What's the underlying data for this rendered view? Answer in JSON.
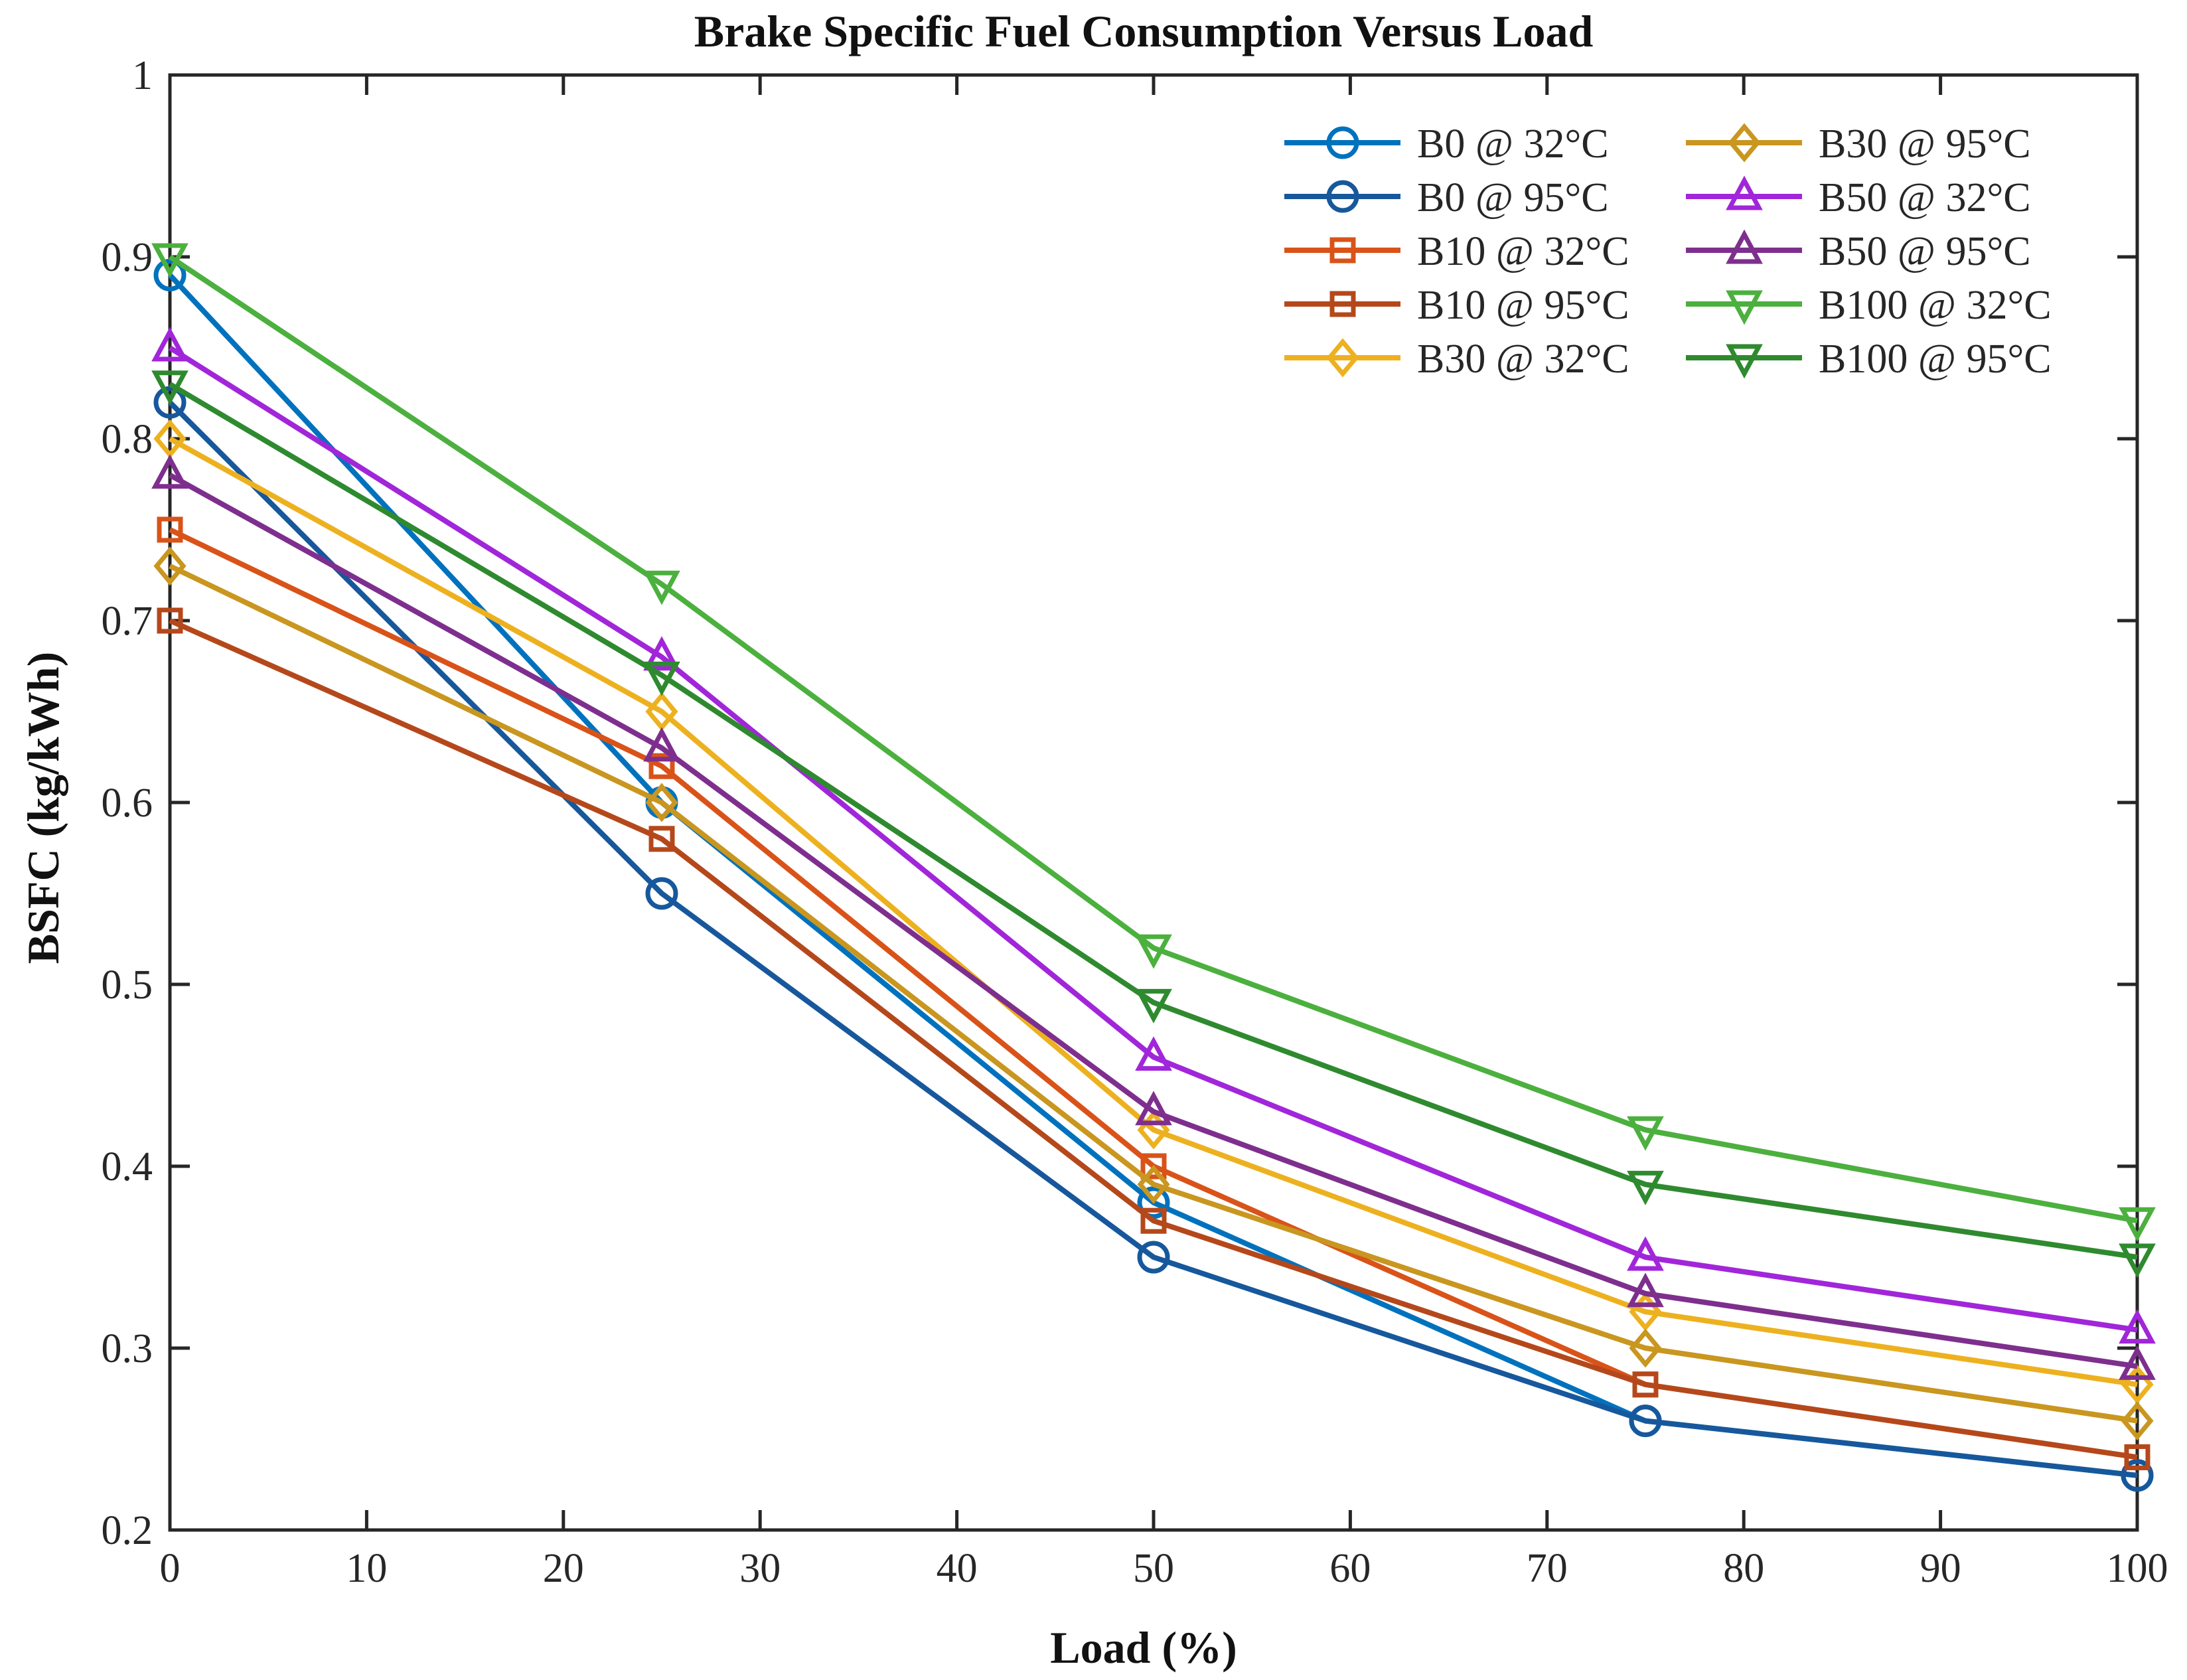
{
  "chart_data": {
    "type": "line",
    "title": "Brake Specific Fuel Consumption Versus Load",
    "xlabel": "Load (%)",
    "ylabel": "BSFC (kg/kWh)",
    "xlim": [
      0,
      100
    ],
    "ylim": [
      0.2,
      1.0
    ],
    "xticks": [
      0,
      10,
      20,
      30,
      40,
      50,
      60,
      70,
      80,
      90,
      100
    ],
    "yticks": [
      0.2,
      0.3,
      0.4,
      0.5,
      0.6,
      0.7,
      0.8,
      0.9,
      1
    ],
    "ytick_labels": [
      "0.2",
      "0.3",
      "0.4",
      "0.5",
      "0.6",
      "0.7",
      "0.8",
      "0.9",
      "1"
    ],
    "grid": false,
    "legend_position": "top-right",
    "x": [
      0,
      25,
      50,
      75,
      100
    ],
    "series": [
      {
        "name": "B0 @ 32°C",
        "color": "#0072BD",
        "marker": "circle",
        "values": [
          0.89,
          0.6,
          0.38,
          0.26,
          0.23
        ]
      },
      {
        "name": "B0 @ 95°C",
        "color": "#17589C",
        "marker": "circle",
        "values": [
          0.82,
          0.55,
          0.35,
          0.26,
          0.23
        ]
      },
      {
        "name": "B10 @ 32°C",
        "color": "#D95319",
        "marker": "square",
        "values": [
          0.75,
          0.62,
          0.4,
          0.28,
          0.24
        ]
      },
      {
        "name": "B10 @ 95°C",
        "color": "#B5481B",
        "marker": "square",
        "values": [
          0.7,
          0.58,
          0.37,
          0.28,
          0.24
        ]
      },
      {
        "name": "B30 @ 32°C",
        "color": "#EDB120",
        "marker": "diamond",
        "values": [
          0.8,
          0.65,
          0.42,
          0.32,
          0.28
        ]
      },
      {
        "name": "B30 @ 95°C",
        "color": "#C9961F",
        "marker": "diamond",
        "values": [
          0.73,
          0.6,
          0.39,
          0.3,
          0.26
        ]
      },
      {
        "name": "B50 @ 32°C",
        "color": "#A126D9",
        "marker": "triangle-up",
        "values": [
          0.85,
          0.68,
          0.46,
          0.35,
          0.31
        ]
      },
      {
        "name": "B50 @ 95°C",
        "color": "#7E2F8E",
        "marker": "triangle-up",
        "values": [
          0.78,
          0.63,
          0.43,
          0.33,
          0.29
        ]
      },
      {
        "name": "B100 @ 32°C",
        "color": "#4CB03E",
        "marker": "triangle-down",
        "values": [
          0.9,
          0.72,
          0.52,
          0.42,
          0.37
        ]
      },
      {
        "name": "B100 @ 95°C",
        "color": "#2F8A2F",
        "marker": "triangle-down",
        "values": [
          0.83,
          0.67,
          0.49,
          0.39,
          0.35
        ]
      }
    ]
  }
}
